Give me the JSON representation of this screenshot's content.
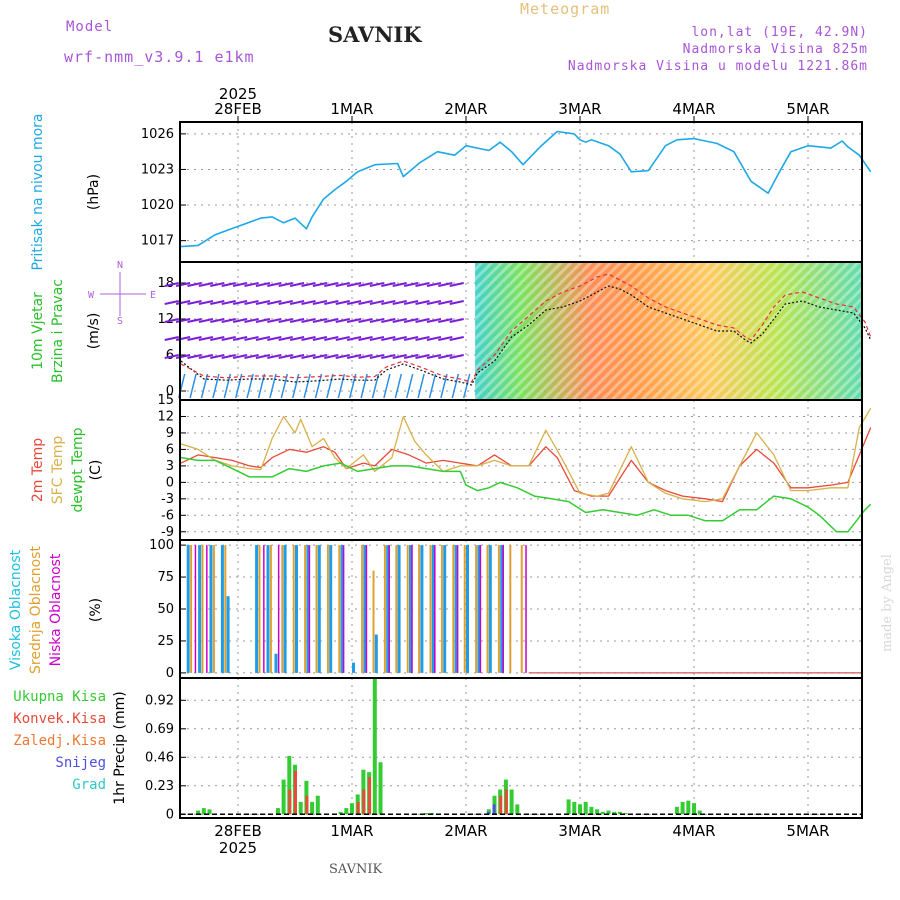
{
  "header": {
    "model_label": "Model",
    "model_name": "wrf-nmm_v3.9.1 e1km",
    "station": "SAVNIK",
    "product": "Meteogram",
    "lonlat": "lon,lat (19E, 42.9N)",
    "elevation": "Nadmorska Visina 825m",
    "model_elevation": "Nadmorska Visina u modelu 1221.86m",
    "footer": "SAVNIK",
    "watermark": "made by Angel"
  },
  "time_axis": {
    "year": "2025",
    "labels": [
      "28FEB",
      "1MAR",
      "2MAR",
      "3MAR",
      "4MAR",
      "5MAR"
    ]
  },
  "colors": {
    "pressure": "#1fa8e8",
    "temp2m": "#e84a3a",
    "sfc": "#d9b14a",
    "dew": "#33cc33",
    "high": "#1e9ce8",
    "mid": "#e0a030",
    "low": "#cc00cc",
    "total": "#33cc33",
    "conv": "#e84a3a",
    "frz": "#f07830",
    "snow": "#5050e0",
    "grad": "#30c8c8",
    "wind_low": "#7b1ed8",
    "wind_mid": "#2a8ee8"
  },
  "chart_data": [
    {
      "type": "line",
      "title": "Pritisak na nivou mora",
      "ylabel": "(hPa)",
      "yticks": [
        1017,
        1020,
        1023,
        1026
      ],
      "ylim": [
        1015.2,
        1027.0
      ],
      "grid": true,
      "series": [
        {
          "name": "Pritisak na nivou mora",
          "x": [
            -0.5,
            -0.35,
            -0.2,
            0.0,
            0.2,
            0.3,
            0.4,
            0.5,
            0.6,
            0.65,
            0.75,
            0.85,
            0.95,
            1.05,
            1.2,
            1.4,
            1.45,
            1.6,
            1.75,
            1.9,
            2.0,
            2.2,
            2.3,
            2.4,
            2.5,
            2.65,
            2.8,
            2.95,
            3.0,
            3.05,
            3.1,
            3.25,
            3.35,
            3.45,
            3.6,
            3.75,
            3.85,
            4.0,
            4.2,
            4.35,
            4.5,
            4.65,
            4.75,
            4.85,
            5.0,
            5.2,
            5.3,
            5.35,
            5.45,
            5.55
          ],
          "values": [
            1016.5,
            1016.6,
            1017.5,
            1018.2,
            1018.9,
            1019.0,
            1018.5,
            1018.9,
            1018.0,
            1019.0,
            1020.5,
            1021.3,
            1022.0,
            1022.8,
            1023.4,
            1023.5,
            1022.4,
            1023.6,
            1024.5,
            1024.2,
            1025.0,
            1024.6,
            1025.3,
            1024.5,
            1023.4,
            1024.9,
            1026.2,
            1026.0,
            1025.5,
            1025.3,
            1025.5,
            1025.0,
            1024.3,
            1022.8,
            1022.9,
            1025.0,
            1025.5,
            1025.6,
            1025.2,
            1024.5,
            1022.0,
            1021.0,
            1022.8,
            1024.5,
            1025.0,
            1024.8,
            1025.4,
            1024.9,
            1024.2,
            1022.8
          ]
        }
      ]
    },
    {
      "type": "line",
      "title": "10m Vjetar Brzina i Pravac",
      "ylabel": "(m/s)",
      "yticks": [
        0,
        6,
        12,
        18
      ],
      "ylim": [
        -1.5,
        21.5
      ],
      "grid": true,
      "legend_compass": {
        "north": "N",
        "west": "W",
        "east": "E",
        "south": "S"
      },
      "series": [
        {
          "name": "10m Vjetar",
          "x": [
            -0.5,
            -0.3,
            -0.1,
            0.1,
            0.3,
            0.5,
            0.7,
            0.9,
            1.05,
            1.2,
            1.3,
            1.45,
            1.6,
            1.8,
            1.95,
            2.05,
            2.1,
            2.25,
            2.4,
            2.55,
            2.7,
            2.85,
            3.0,
            3.15,
            3.25,
            3.35,
            3.45,
            3.6,
            3.75,
            3.9,
            4.05,
            4.2,
            4.35,
            4.45,
            4.5,
            4.6,
            4.7,
            4.8,
            4.95,
            5.1,
            5.25,
            5.4,
            5.5,
            5.55
          ],
          "values": [
            5.0,
            2.0,
            1.8,
            2.0,
            2.0,
            1.5,
            1.7,
            2.0,
            1.8,
            1.8,
            3.5,
            4.5,
            3.5,
            2.0,
            1.5,
            1.0,
            3.0,
            5.0,
            9.0,
            11.0,
            13.5,
            14.0,
            15.0,
            16.5,
            17.5,
            17.0,
            16.0,
            14.0,
            13.0,
            12.0,
            11.0,
            10.0,
            10.0,
            8.5,
            8.0,
            9.5,
            12.0,
            14.5,
            15.0,
            14.0,
            13.5,
            13.0,
            10.5,
            8.5
          ]
        },
        {
          "name": "10m Vjetar udari",
          "x": [
            -0.5,
            -0.3,
            -0.1,
            0.1,
            0.3,
            0.5,
            0.7,
            0.9,
            1.05,
            1.2,
            1.3,
            1.45,
            1.6,
            1.8,
            1.95,
            2.05,
            2.1,
            2.25,
            2.4,
            2.55,
            2.7,
            2.85,
            3.0,
            3.15,
            3.25,
            3.35,
            3.45,
            3.6,
            3.75,
            3.9,
            4.05,
            4.2,
            4.35,
            4.45,
            4.5,
            4.6,
            4.7,
            4.8,
            4.95,
            5.1,
            5.25,
            5.4,
            5.5,
            5.55
          ],
          "values": [
            4.5,
            2.5,
            2.2,
            2.5,
            2.5,
            2.2,
            2.4,
            2.6,
            2.3,
            2.4,
            4.0,
            5.0,
            4.0,
            2.5,
            2.0,
            1.5,
            3.5,
            6.0,
            10.0,
            12.5,
            15.0,
            16.5,
            17.5,
            19.0,
            19.5,
            18.5,
            17.5,
            15.5,
            14.0,
            13.0,
            12.0,
            11.0,
            10.5,
            9.0,
            8.5,
            11.0,
            14.0,
            16.0,
            16.5,
            15.5,
            14.5,
            14.0,
            11.5,
            9.0
          ]
        }
      ]
    },
    {
      "type": "line",
      "ylabel": "(C)",
      "yticks": [
        -9,
        -6,
        -3,
        0,
        3,
        6,
        9,
        12,
        15
      ],
      "ylim": [
        -10.5,
        15.0
      ],
      "grid": true,
      "series": [
        {
          "name": "2m Temp",
          "x": [
            -0.5,
            -0.35,
            -0.2,
            -0.05,
            0.1,
            0.2,
            0.3,
            0.45,
            0.6,
            0.75,
            0.85,
            0.95,
            1.1,
            1.2,
            1.35,
            1.5,
            1.65,
            1.8,
            1.95,
            2.1,
            2.25,
            2.4,
            2.55,
            2.7,
            2.8,
            2.95,
            3.1,
            3.25,
            3.45,
            3.6,
            3.75,
            3.9,
            4.1,
            4.25,
            4.4,
            4.55,
            4.7,
            4.85,
            5.0,
            5.2,
            5.35,
            5.5,
            5.55
          ],
          "values": [
            3.5,
            5.0,
            4.5,
            4.0,
            3.0,
            2.7,
            4.5,
            6.0,
            5.5,
            6.5,
            5.5,
            2.5,
            3.5,
            3.0,
            6.0,
            5.0,
            3.5,
            4.0,
            3.5,
            3.0,
            5.0,
            3.0,
            3.0,
            6.5,
            4.5,
            -1.5,
            -2.5,
            -2.5,
            4.0,
            0.0,
            -1.5,
            -2.5,
            -3.0,
            -3.5,
            3.0,
            6.0,
            3.5,
            -1.0,
            -1.0,
            -0.5,
            0.0,
            7.5,
            10.0
          ]
        },
        {
          "name": "SFC Temp",
          "x": [
            -0.5,
            -0.35,
            -0.2,
            -0.05,
            0.1,
            0.2,
            0.3,
            0.4,
            0.5,
            0.55,
            0.65,
            0.75,
            0.85,
            0.95,
            1.1,
            1.2,
            1.35,
            1.45,
            1.55,
            1.65,
            1.8,
            1.95,
            2.1,
            2.25,
            2.4,
            2.55,
            2.7,
            2.85,
            3.0,
            3.15,
            3.25,
            3.45,
            3.6,
            3.75,
            3.9,
            4.1,
            4.25,
            4.4,
            4.55,
            4.7,
            4.85,
            5.0,
            5.2,
            5.35,
            5.45,
            5.55
          ],
          "values": [
            7.0,
            6.0,
            4.0,
            3.0,
            2.5,
            2.3,
            8.0,
            12.0,
            9.0,
            11.5,
            6.5,
            8.0,
            4.5,
            2.5,
            5.0,
            2.0,
            4.5,
            12.0,
            7.5,
            5.0,
            2.0,
            3.0,
            3.0,
            4.0,
            3.0,
            3.0,
            9.5,
            4.0,
            -2.0,
            -2.5,
            -2.0,
            6.5,
            0.0,
            -2.0,
            -3.0,
            -3.5,
            -3.0,
            3.0,
            9.0,
            5.0,
            -1.5,
            -1.5,
            -1.0,
            -1.0,
            10.0,
            13.5
          ]
        },
        {
          "name": "dewpt Temp",
          "x": [
            -0.5,
            -0.35,
            -0.2,
            -0.05,
            0.1,
            0.3,
            0.45,
            0.6,
            0.75,
            0.9,
            1.05,
            1.2,
            1.35,
            1.5,
            1.65,
            1.8,
            1.95,
            2.0,
            2.1,
            2.2,
            2.3,
            2.45,
            2.6,
            2.75,
            2.9,
            3.05,
            3.2,
            3.35,
            3.5,
            3.65,
            3.8,
            3.95,
            4.1,
            4.25,
            4.4,
            4.55,
            4.7,
            4.85,
            5.0,
            5.1,
            5.2,
            5.25,
            5.35,
            5.5,
            5.55
          ],
          "values": [
            4.5,
            4.0,
            4.0,
            2.5,
            1.0,
            1.0,
            2.5,
            2.0,
            3.0,
            3.5,
            2.0,
            2.5,
            3.0,
            3.0,
            2.5,
            2.0,
            2.0,
            -0.5,
            -1.5,
            -1.0,
            0.0,
            -1.0,
            -2.5,
            -3.0,
            -3.5,
            -5.5,
            -5.0,
            -5.5,
            -6.0,
            -5.0,
            -6.0,
            -6.0,
            -7.0,
            -7.0,
            -5.0,
            -5.0,
            -2.5,
            -3.0,
            -4.5,
            -6.0,
            -8.0,
            -9.0,
            -9.0,
            -5.0,
            -4.0
          ]
        }
      ]
    },
    {
      "type": "bar",
      "ylabel": "(%)",
      "yticks": [
        0,
        25,
        50,
        75,
        100
      ],
      "ylim": [
        -4,
        104
      ],
      "grid": true,
      "series": [
        {
          "name": "Visoka Oblacnost",
          "x": [
            -0.45,
            -0.35,
            -0.25,
            -0.15,
            -0.1,
            0.15,
            0.25,
            0.32,
            0.4,
            0.5,
            0.6,
            0.7,
            0.8,
            0.9,
            1.0,
            1.1,
            1.2,
            1.3,
            1.4,
            1.5,
            1.6,
            1.7,
            1.8,
            1.9,
            2.0,
            2.1,
            2.2,
            2.3
          ],
          "values": [
            100,
            100,
            100,
            100,
            60,
            100,
            100,
            15,
            100,
            100,
            100,
            100,
            100,
            100,
            8,
            100,
            30,
            100,
            100,
            100,
            100,
            100,
            100,
            100,
            100,
            100,
            100,
            100
          ]
        },
        {
          "name": "Srednja Oblacnost",
          "x": [
            -0.42,
            -0.32,
            -0.22,
            -0.12,
            0.18,
            0.28,
            0.38,
            0.48,
            0.58,
            0.68,
            0.78,
            0.88,
            1.08,
            1.18,
            1.28,
            1.38,
            1.48,
            1.58,
            1.68,
            1.78,
            1.88,
            1.98,
            2.08,
            2.18,
            2.28,
            2.38,
            2.48
          ],
          "values": [
            100,
            100,
            100,
            100,
            100,
            100,
            100,
            100,
            100,
            100,
            100,
            100,
            100,
            80,
            100,
            100,
            100,
            100,
            100,
            100,
            100,
            100,
            100,
            100,
            100,
            100,
            100
          ]
        },
        {
          "name": "Niska Oblacnost",
          "x": [
            -0.38,
            -0.28,
            0.22,
            0.35,
            0.62,
            0.92,
            1.12,
            1.32,
            1.52,
            1.72,
            1.92,
            2.12,
            2.32,
            2.52
          ],
          "values": [
            100,
            100,
            100,
            100,
            100,
            100,
            100,
            100,
            100,
            100,
            100,
            100,
            100,
            100
          ]
        }
      ]
    },
    {
      "type": "bar",
      "ylabel": "1hr Precip (mm)",
      "yticks": [
        0,
        0.23,
        0.46,
        0.69,
        0.92
      ],
      "ylim": [
        -0.03,
        1.1
      ],
      "grid": true,
      "series": [
        {
          "name": "Ukupna Kisa",
          "x": [
            -0.35,
            -0.3,
            -0.25,
            0.35,
            0.4,
            0.45,
            0.5,
            0.55,
            0.6,
            0.65,
            0.7,
            0.9,
            0.95,
            1.0,
            1.05,
            1.1,
            1.15,
            1.2,
            1.25,
            1.65,
            1.7,
            2.2,
            2.25,
            2.3,
            2.35,
            2.4,
            2.45,
            2.9,
            2.95,
            3.0,
            3.05,
            3.1,
            3.15,
            3.2,
            3.25,
            3.3,
            3.35,
            3.4,
            3.85,
            3.9,
            3.95,
            4.0,
            4.05
          ],
          "values": [
            0.03,
            0.05,
            0.04,
            0.05,
            0.28,
            0.47,
            0.4,
            0.1,
            0.27,
            0.1,
            0.15,
            0.02,
            0.05,
            0.09,
            0.16,
            0.36,
            0.34,
            1.1,
            0.42,
            0.01,
            0.01,
            0.04,
            0.15,
            0.2,
            0.28,
            0.2,
            0.08,
            0.12,
            0.1,
            0.08,
            0.1,
            0.06,
            0.04,
            0.02,
            0.03,
            0.02,
            0.02,
            0.01,
            0.06,
            0.1,
            0.11,
            0.09,
            0.03
          ]
        },
        {
          "name": "Konvek.Kisa",
          "x": [
            0.45,
            0.5,
            0.6,
            1.05,
            1.1,
            1.15,
            2.3,
            2.35
          ],
          "values": [
            0.2,
            0.35,
            0.15,
            0.1,
            0.2,
            0.3,
            0.15,
            0.2
          ]
        },
        {
          "name": "Zaledj.Kisa",
          "x": [],
          "values": []
        },
        {
          "name": "Snijeg",
          "x": [
            2.2,
            2.25
          ],
          "values": [
            0.02,
            0.08
          ]
        },
        {
          "name": "Grad",
          "x": [],
          "values": []
        }
      ]
    }
  ],
  "legends": {
    "pressure": [
      "Pritisak na nivou mora"
    ],
    "wind": [
      "10m Vjetar",
      "Brzina i Pravac"
    ],
    "temp": [
      "2m Temp",
      "SFC Temp",
      "dewpt Temp"
    ],
    "cloud": [
      "Visoka Oblacnost",
      "Srednja Oblacnost",
      "Niska Oblacnost"
    ],
    "precip": [
      "Ukupna Kisa",
      "Konvek.Kisa",
      "Zaledj.Kisa",
      "Snijeg",
      "Grad"
    ]
  }
}
